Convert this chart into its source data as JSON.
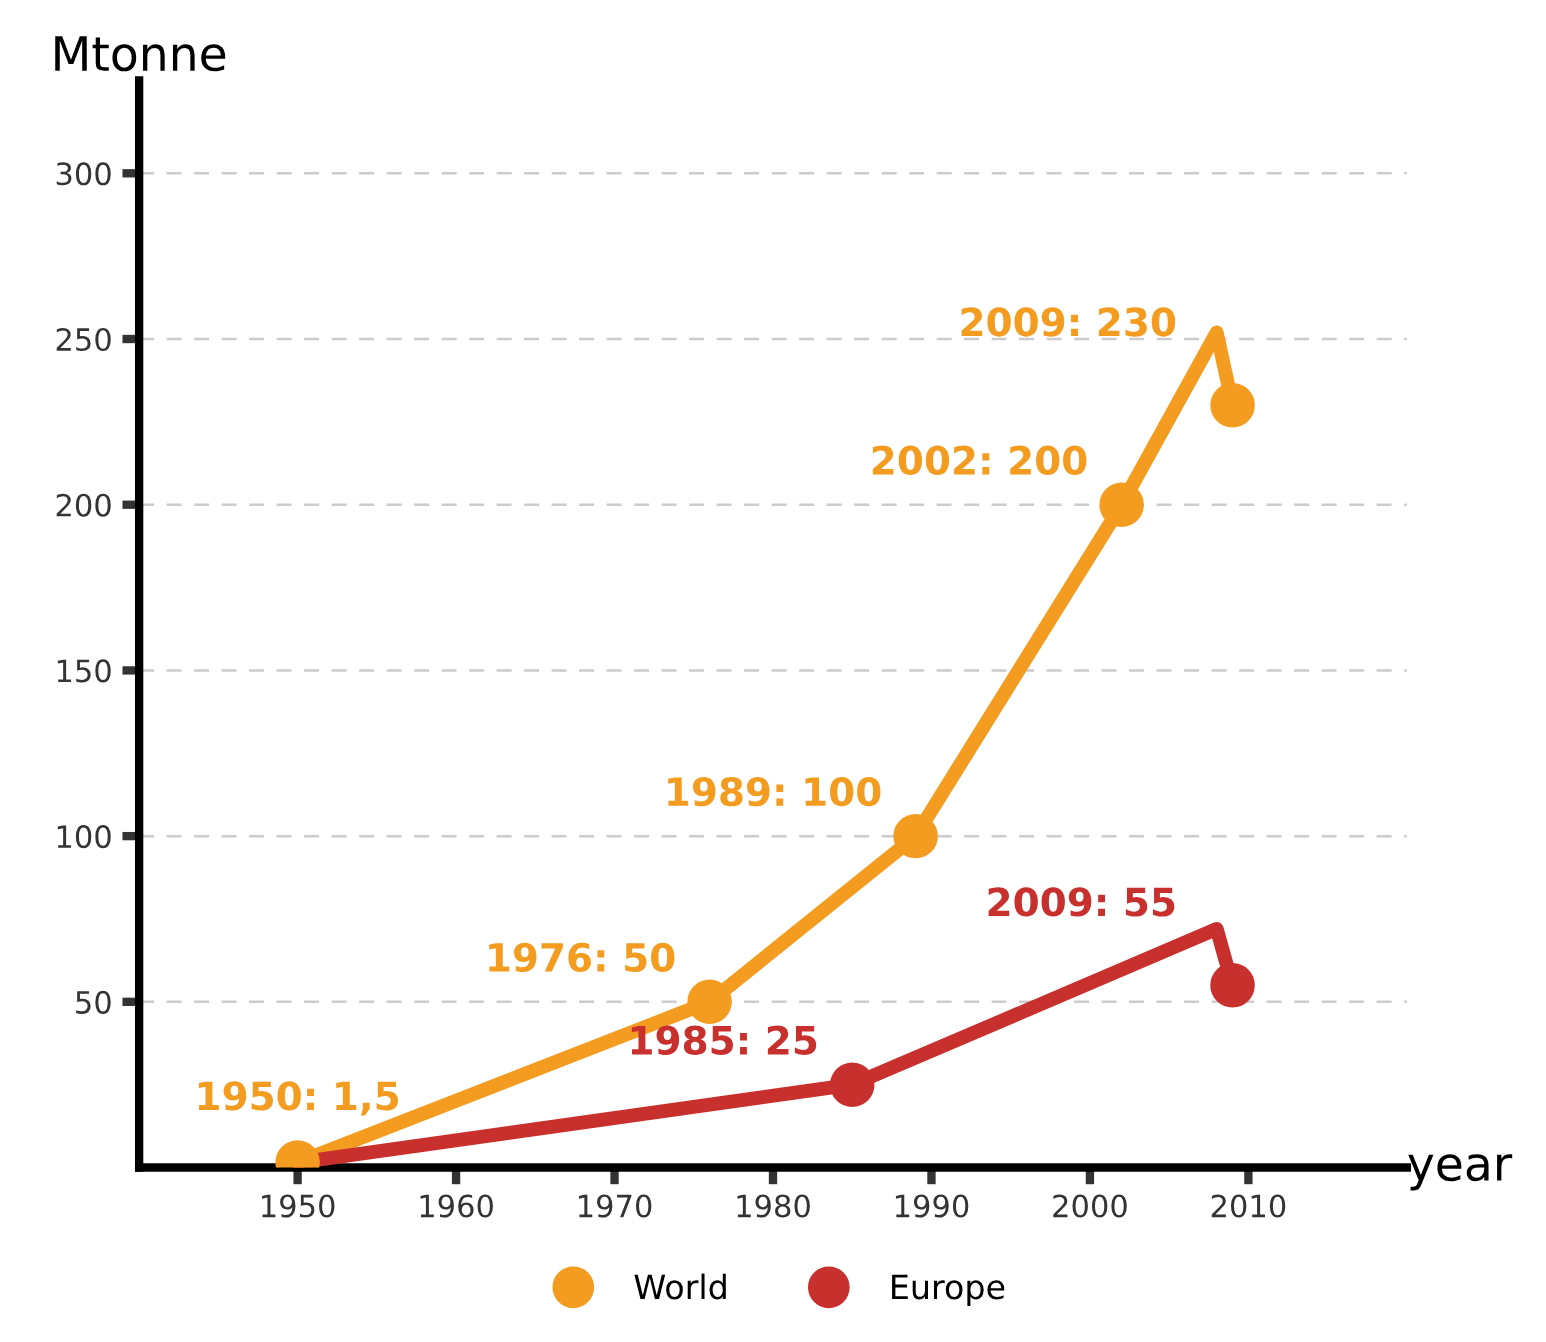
{
  "chart_data": {
    "type": "line",
    "ylabel": "Mtonne",
    "xlabel": "year",
    "xlim": [
      1940,
      2020
    ],
    "ylim": [
      0,
      328
    ],
    "xticks": [
      1950,
      1960,
      1970,
      1980,
      1990,
      2000,
      2010
    ],
    "yticks": [
      50,
      100,
      150,
      200,
      250,
      300
    ],
    "grid": "y",
    "legend": "bottom",
    "marker": "circle",
    "line_style": "solid",
    "series": [
      {
        "name": "World",
        "color": "#f39c1f",
        "x": [
          1950,
          1976,
          1989,
          2002,
          2008,
          2009
        ],
        "values": [
          1.5,
          50,
          100,
          200,
          252,
          230
        ],
        "value_labels": [
          "1950: 1,5",
          "1976: 50",
          "1989: 100",
          "2002: 200",
          null,
          "2009: 230"
        ]
      },
      {
        "name": "Europe",
        "color": "#c8302e",
        "x": [
          1950,
          1985,
          2008,
          2009
        ],
        "values": [
          1.5,
          25,
          72,
          55
        ],
        "value_labels": [
          null,
          "1985: 25",
          null,
          "2009: 55"
        ]
      }
    ]
  }
}
